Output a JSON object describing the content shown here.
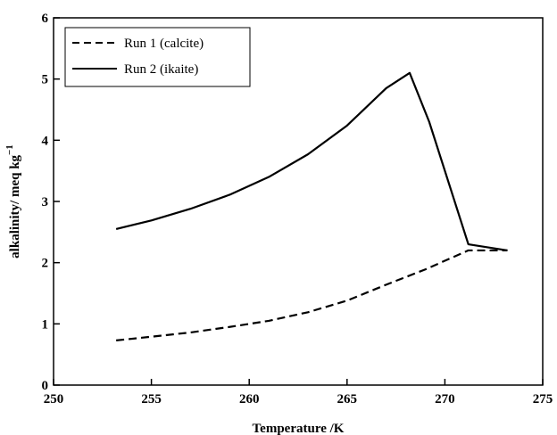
{
  "chart_data": {
    "type": "line",
    "title": "",
    "xlabel": "Temperature /K",
    "ylabel_main": "alkalinity/ meq kg",
    "ylabel_sup": "−1",
    "xlim": [
      250,
      275
    ],
    "ylim": [
      0,
      6
    ],
    "xticks": [
      250,
      255,
      260,
      265,
      270,
      275
    ],
    "yticks": [
      0,
      1,
      2,
      3,
      4,
      5,
      6
    ],
    "grid": false,
    "legend_position": "top-left",
    "series": [
      {
        "name": "Run 1 (calcite)",
        "style": "dashed",
        "color": "#000000",
        "x": [
          253.2,
          255,
          257,
          259,
          261,
          263,
          265,
          267,
          269,
          271.2,
          272.2,
          273.2
        ],
        "y": [
          0.73,
          0.79,
          0.86,
          0.95,
          1.05,
          1.19,
          1.38,
          1.64,
          1.89,
          2.2,
          2.2,
          2.2
        ]
      },
      {
        "name": "Run 2 (ikaite)",
        "style": "solid",
        "color": "#000000",
        "x": [
          253.2,
          255,
          257,
          259,
          261,
          263,
          265,
          267,
          268.2,
          269.2,
          271.2,
          273.2
        ],
        "y": [
          2.55,
          2.69,
          2.88,
          3.11,
          3.4,
          3.77,
          4.24,
          4.85,
          5.1,
          4.3,
          2.3,
          2.2
        ]
      }
    ]
  }
}
